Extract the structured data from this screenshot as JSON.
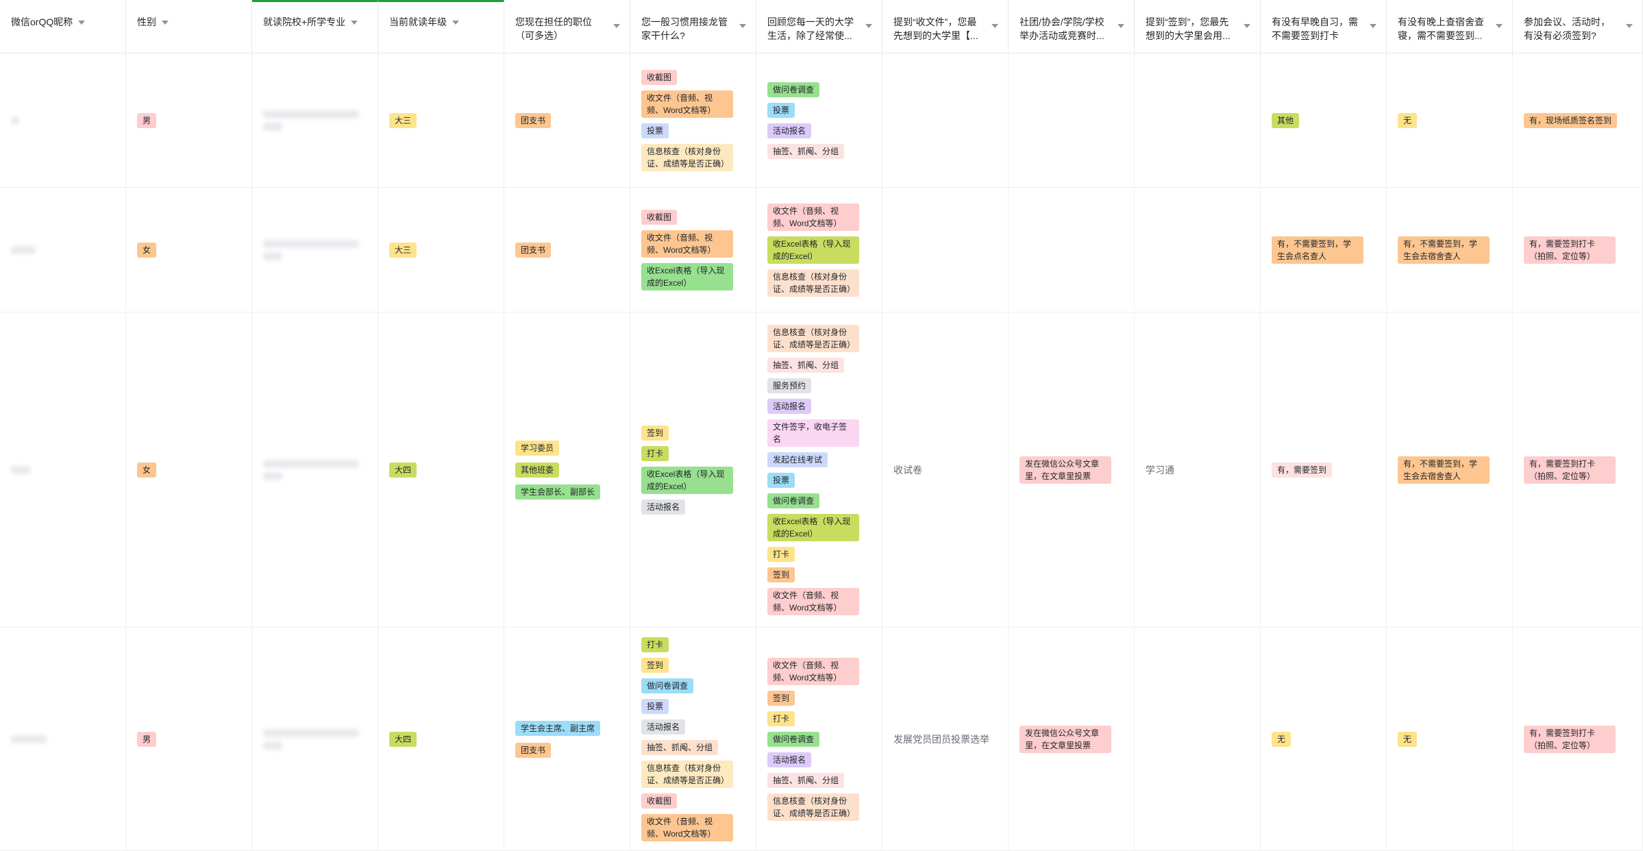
{
  "headers": [
    {
      "label": "微信orQQ昵称"
    },
    {
      "label": "性别"
    },
    {
      "label": "就读院校+所学专业"
    },
    {
      "label": "当前就读年级"
    },
    {
      "label": "您现在担任的职位（可多选）"
    },
    {
      "label": "您一般习惯用接龙管家干什么?"
    },
    {
      "label": "回顾您每一天的大学生活，除了经常使..."
    },
    {
      "label": "提到“收文件”，您最先想到的大学里【..."
    },
    {
      "label": "社团/协会/学院/学校举办活动或竞赛时..."
    },
    {
      "label": "提到“签到”，您最先想到的大学里会用..."
    },
    {
      "label": "有没有早晚自习，需不需要签到打卡"
    },
    {
      "label": "有没有晚上查宿舍查寝，需不需要签到..."
    },
    {
      "label": "参加会议、活动时，有没有必须签到?"
    }
  ],
  "rows": [
    {
      "gender": {
        "text": "男",
        "color": "red"
      },
      "grade": {
        "text": "大三",
        "color": "yellow"
      },
      "positions": [
        {
          "text": "团支书",
          "color": "orange"
        }
      ],
      "usage": [
        {
          "text": "收截图",
          "color": "red"
        },
        {
          "text": "收文件（音频、视频、Word文档等）",
          "color": "orange"
        },
        {
          "text": "投票",
          "color": "blue"
        },
        {
          "text": "信息核查（核对身份证、成绩等是否正确）",
          "color": "cream"
        }
      ],
      "daily": [
        {
          "text": "做问卷调查",
          "color": "green"
        },
        {
          "text": "投票",
          "color": "sky"
        },
        {
          "text": "活动报名",
          "color": "purple"
        },
        {
          "text": "抽签、抓阄、分组",
          "color": "pinklight"
        }
      ],
      "collect": "",
      "activity": null,
      "checkin": "",
      "study": {
        "text": "其他",
        "color": "lime"
      },
      "dorm": {
        "text": "无",
        "color": "yellow"
      },
      "meeting": {
        "text": "有，现场纸质签名签到",
        "color": "orange"
      }
    },
    {
      "gender": {
        "text": "女",
        "color": "orange"
      },
      "grade": {
        "text": "大三",
        "color": "yellow"
      },
      "positions": [
        {
          "text": "团支书",
          "color": "orange"
        }
      ],
      "usage": [
        {
          "text": "收截图",
          "color": "red"
        },
        {
          "text": "收文件（音频、视频、Word文档等）",
          "color": "orange"
        },
        {
          "text": "收Excel表格（导入现成的Excel）",
          "color": "green"
        }
      ],
      "daily": [
        {
          "text": "收文件（音频、视频、Word文档等）",
          "color": "red"
        },
        {
          "text": "收Excel表格（导入现成的Excel）",
          "color": "lime"
        },
        {
          "text": "信息核查（核对身份证、成绩等是否正确）",
          "color": "peach"
        }
      ],
      "collect": "",
      "activity": null,
      "checkin": "",
      "study": {
        "text": "有，不需要签到，学生会点名查人",
        "color": "orange"
      },
      "dorm": {
        "text": "有，不需要签到，学生会去宿舍查人",
        "color": "orange"
      },
      "meeting": {
        "text": "有，需要签到打卡（拍照、定位等）",
        "color": "red"
      }
    },
    {
      "gender": {
        "text": "女",
        "color": "orange"
      },
      "grade": {
        "text": "大四",
        "color": "lime"
      },
      "positions": [
        {
          "text": "学习委员",
          "color": "yellow"
        },
        {
          "text": "其他班委",
          "color": "lime"
        },
        {
          "text": "学生会部长、副部长",
          "color": "green"
        }
      ],
      "usage": [
        {
          "text": "签到",
          "color": "yellow"
        },
        {
          "text": "打卡",
          "color": "lime"
        },
        {
          "text": "收Excel表格（导入现成的Excel）",
          "color": "green"
        },
        {
          "text": "活动报名",
          "color": "gray"
        }
      ],
      "daily": [
        {
          "text": "信息核查（核对身份证、成绩等是否正确）",
          "color": "peach"
        },
        {
          "text": "抽签、抓阄、分组",
          "color": "pinklight"
        },
        {
          "text": "服务预约",
          "color": "gray"
        },
        {
          "text": "活动报名",
          "color": "purple"
        },
        {
          "text": "文件签字，收电子签名",
          "color": "pink"
        },
        {
          "text": "发起在线考试",
          "color": "blue"
        },
        {
          "text": "投票",
          "color": "sky"
        },
        {
          "text": "做问卷调查",
          "color": "green"
        },
        {
          "text": "收Excel表格（导入现成的Excel）",
          "color": "lime"
        },
        {
          "text": "打卡",
          "color": "yellow"
        },
        {
          "text": "签到",
          "color": "orange"
        },
        {
          "text": "收文件（音频、视频、Word文档等）",
          "color": "red"
        }
      ],
      "collect": "收试卷",
      "activity": {
        "text": "发在微信公众号文章里，在文章里投票",
        "color": "red"
      },
      "checkin": "学习通",
      "study": {
        "text": "有，需要签到",
        "color": "pinklight"
      },
      "dorm": {
        "text": "有，不需要签到，学生会去宿舍查人",
        "color": "orange"
      },
      "meeting": {
        "text": "有，需要签到打卡（拍照、定位等）",
        "color": "red"
      }
    },
    {
      "gender": {
        "text": "男",
        "color": "red"
      },
      "grade": {
        "text": "大四",
        "color": "lime"
      },
      "positions": [
        {
          "text": "学生会主席、副主席",
          "color": "sky"
        },
        {
          "text": "团支书",
          "color": "orange"
        }
      ],
      "usage": [
        {
          "text": "打卡",
          "color": "lime"
        },
        {
          "text": "签到",
          "color": "yellow"
        },
        {
          "text": "做问卷调查",
          "color": "sky"
        },
        {
          "text": "投票",
          "color": "blue"
        },
        {
          "text": "活动报名",
          "color": "gray"
        },
        {
          "text": "抽签、抓阄、分组",
          "color": "peach"
        },
        {
          "text": "信息核查（核对身份证、成绩等是否正确）",
          "color": "cream"
        },
        {
          "text": "收截图",
          "color": "red"
        },
        {
          "text": "收文件（音频、视频、Word文档等）",
          "color": "orange"
        }
      ],
      "daily": [
        {
          "text": "收文件（音频、视频、Word文档等）",
          "color": "red"
        },
        {
          "text": "签到",
          "color": "orange"
        },
        {
          "text": "打卡",
          "color": "yellow"
        },
        {
          "text": "做问卷调查",
          "color": "green"
        },
        {
          "text": "活动报名",
          "color": "purple"
        },
        {
          "text": "抽签、抓阄、分组",
          "color": "pinklight"
        },
        {
          "text": "信息核查（核对身份证、成绩等是否正确）",
          "color": "peach"
        }
      ],
      "collect": "发展党员团员投票选举",
      "activity": {
        "text": "发在微信公众号文章里，在文章里投票",
        "color": "red"
      },
      "checkin": "",
      "study": {
        "text": "无",
        "color": "yellow"
      },
      "dorm": {
        "text": "无",
        "color": "yellow"
      },
      "meeting": {
        "text": "有，需要签到打卡（拍照、定位等）",
        "color": "red"
      }
    }
  ]
}
